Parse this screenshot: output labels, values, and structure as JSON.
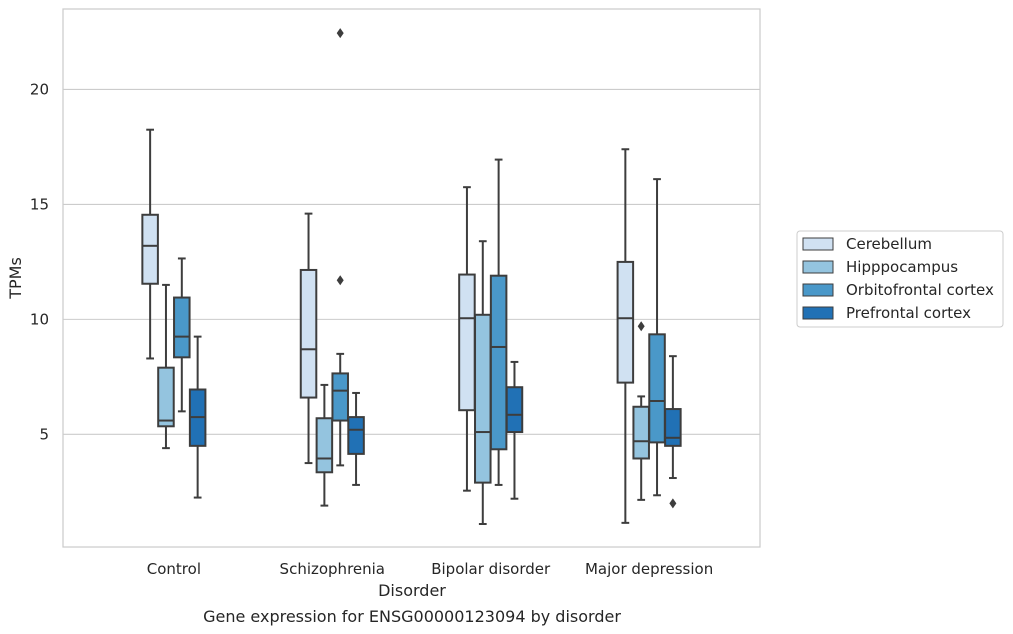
{
  "chart_data": {
    "type": "box",
    "title": "",
    "caption": "Gene expression for ENSG00000123094 by disorder",
    "xlabel": "Disorder",
    "ylabel": "TPMs",
    "ylim": [
      0.1,
      23.5
    ],
    "yticks": [
      5,
      10,
      15,
      20
    ],
    "grid": "horizontal",
    "legend_position": "right",
    "categories": [
      "Control",
      "Schizophrenia",
      "Bipolar disorder",
      "Major depression"
    ],
    "series": [
      {
        "name": "Cerebellum",
        "color": "#d0e1f2",
        "boxes": [
          {
            "whislo": 8.3,
            "q1": 11.55,
            "med": 13.2,
            "q3": 14.55,
            "whishi": 18.25,
            "fliers": []
          },
          {
            "whislo": 3.75,
            "q1": 6.6,
            "med": 8.7,
            "q3": 12.15,
            "whishi": 14.6,
            "fliers": []
          },
          {
            "whislo": 2.55,
            "q1": 6.05,
            "med": 10.05,
            "q3": 11.95,
            "whishi": 15.75,
            "fliers": []
          },
          {
            "whislo": 1.15,
            "q1": 7.25,
            "med": 10.05,
            "q3": 12.5,
            "whishi": 17.4,
            "fliers": []
          }
        ]
      },
      {
        "name": "Hipppocampus",
        "color": "#94c4df",
        "boxes": [
          {
            "whislo": 4.4,
            "q1": 5.35,
            "med": 5.6,
            "q3": 7.9,
            "whishi": 11.5,
            "fliers": []
          },
          {
            "whislo": 1.9,
            "q1": 3.35,
            "med": 3.95,
            "q3": 5.7,
            "whishi": 7.15,
            "fliers": []
          },
          {
            "whislo": 1.1,
            "q1": 2.9,
            "med": 5.1,
            "q3": 10.2,
            "whishi": 13.4,
            "fliers": []
          },
          {
            "whislo": 2.15,
            "q1": 3.95,
            "med": 4.7,
            "q3": 6.2,
            "whishi": 6.65,
            "fliers": [
              9.7
            ]
          }
        ]
      },
      {
        "name": "Orbitofrontal cortex",
        "color": "#4a98c9",
        "boxes": [
          {
            "whislo": 6.0,
            "q1": 8.35,
            "med": 9.25,
            "q3": 10.95,
            "whishi": 12.65,
            "fliers": []
          },
          {
            "whislo": 3.65,
            "q1": 5.6,
            "med": 6.9,
            "q3": 7.65,
            "whishi": 8.5,
            "fliers": [
              22.45,
              11.7
            ]
          },
          {
            "whislo": 2.8,
            "q1": 4.35,
            "med": 8.8,
            "q3": 11.9,
            "whishi": 16.95,
            "fliers": []
          },
          {
            "whislo": 2.35,
            "q1": 4.65,
            "med": 6.45,
            "q3": 9.35,
            "whishi": 16.1,
            "fliers": []
          }
        ]
      },
      {
        "name": "Prefrontal cortex",
        "color": "#2171b5",
        "boxes": [
          {
            "whislo": 2.25,
            "q1": 4.5,
            "med": 5.75,
            "q3": 6.95,
            "whishi": 9.25,
            "fliers": []
          },
          {
            "whislo": 2.8,
            "q1": 4.15,
            "med": 5.2,
            "q3": 5.75,
            "whishi": 6.8,
            "fliers": []
          },
          {
            "whislo": 2.2,
            "q1": 5.1,
            "med": 5.85,
            "q3": 7.05,
            "whishi": 8.15,
            "fliers": []
          },
          {
            "whislo": 3.1,
            "q1": 4.5,
            "med": 4.85,
            "q3": 6.1,
            "whishi": 8.4,
            "fliers": [
              2.0
            ]
          }
        ]
      }
    ]
  }
}
